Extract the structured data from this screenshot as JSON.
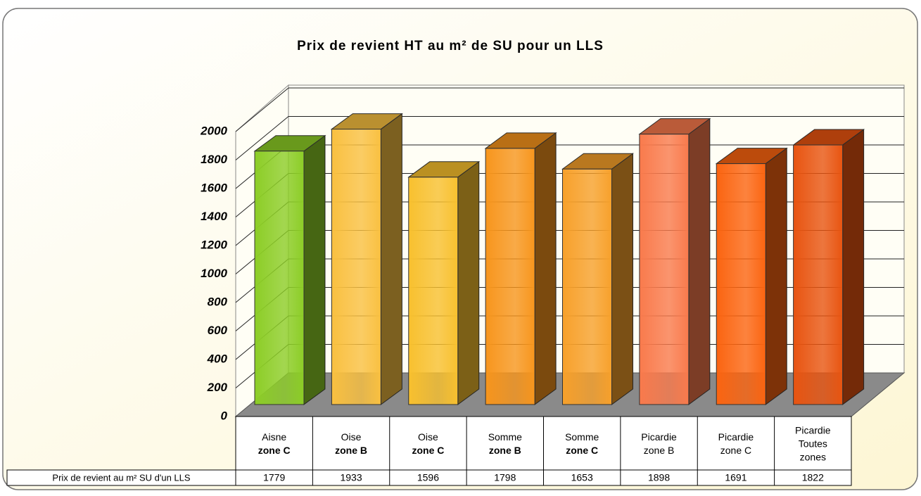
{
  "chart_data": {
    "type": "bar3d",
    "title": "Prix de revient HT au m² de SU pour un LLS",
    "categories": [
      {
        "lines": [
          "Aisne",
          "zone C"
        ],
        "bold": [
          false,
          true
        ]
      },
      {
        "lines": [
          "Oise",
          "zone B"
        ],
        "bold": [
          false,
          true
        ]
      },
      {
        "lines": [
          "Oise",
          "zone C"
        ],
        "bold": [
          false,
          true
        ]
      },
      {
        "lines": [
          "Somme",
          "zone B"
        ],
        "bold": [
          false,
          true
        ]
      },
      {
        "lines": [
          "Somme",
          "zone C"
        ],
        "bold": [
          false,
          true
        ]
      },
      {
        "lines": [
          "Picardie",
          "zone B"
        ],
        "bold": [
          false,
          false
        ]
      },
      {
        "lines": [
          "Picardie",
          "zone C"
        ],
        "bold": [
          false,
          false
        ]
      },
      {
        "lines": [
          "Picardie",
          "Toutes",
          "zones"
        ],
        "bold": [
          false,
          false,
          false
        ]
      }
    ],
    "series": [
      {
        "name": "Prix de revient au m² SU d'un LLS",
        "values": [
          1779,
          1933,
          1596,
          1798,
          1653,
          1898,
          1691,
          1822
        ],
        "colors": [
          "#8ccd26",
          "#f9c040",
          "#f8c02e",
          "#f7951c",
          "#f7a02a",
          "#f97a4c",
          "#fb6410",
          "#e85410"
        ]
      }
    ],
    "ylim": [
      0,
      2000
    ],
    "yticks": [
      0,
      200,
      400,
      600,
      800,
      1000,
      1200,
      1400,
      1600,
      1800,
      2000
    ],
    "grid": true
  }
}
